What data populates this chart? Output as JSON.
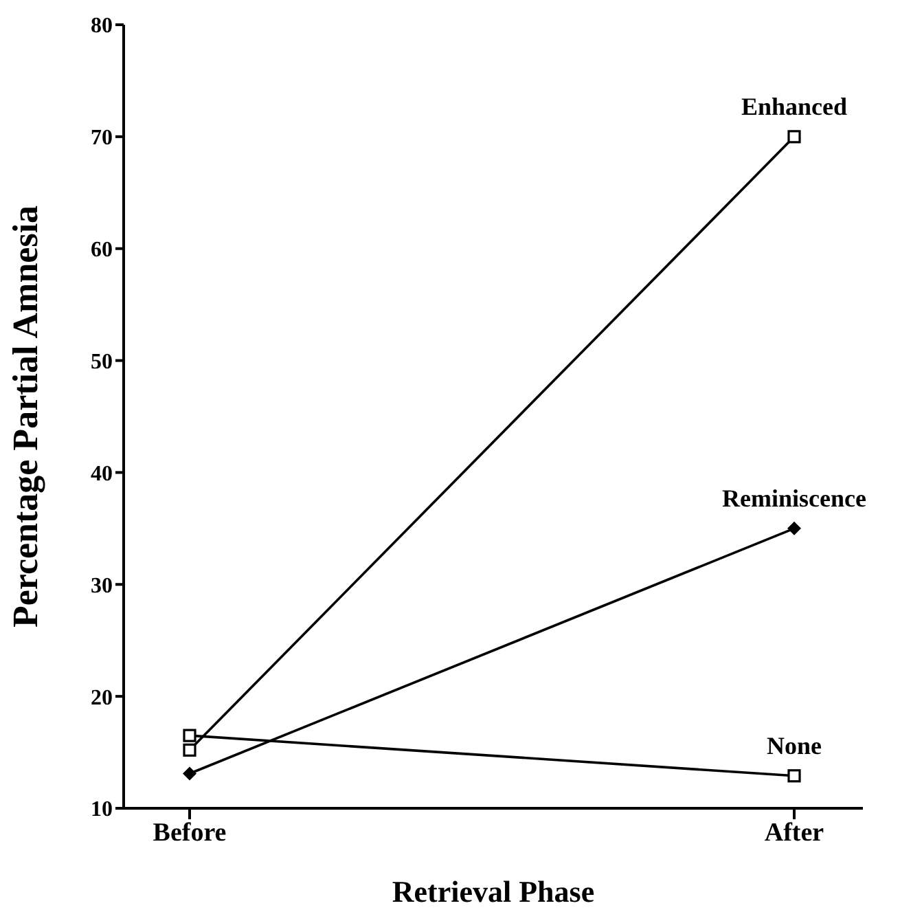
{
  "chart_data": {
    "type": "line",
    "xlabel": "Retrieval Phase",
    "ylabel": "Percentage Partial Amnesia",
    "categories": [
      "Before",
      "After"
    ],
    "series": [
      {
        "name": "Enhanced",
        "color": "#000000",
        "marker": "square",
        "values": [
          15.2,
          70
        ]
      },
      {
        "name": "Reminiscence",
        "color": "#000000",
        "marker": "diamond",
        "values": [
          13.1,
          35
        ]
      },
      {
        "name": "None",
        "color": "#000000",
        "marker": "square",
        "values": [
          16.5,
          12.9
        ]
      }
    ],
    "ylim": [
      10,
      80
    ],
    "yticks": [
      10,
      20,
      30,
      40,
      50,
      60,
      70,
      80
    ],
    "grid": false,
    "legend": false
  }
}
